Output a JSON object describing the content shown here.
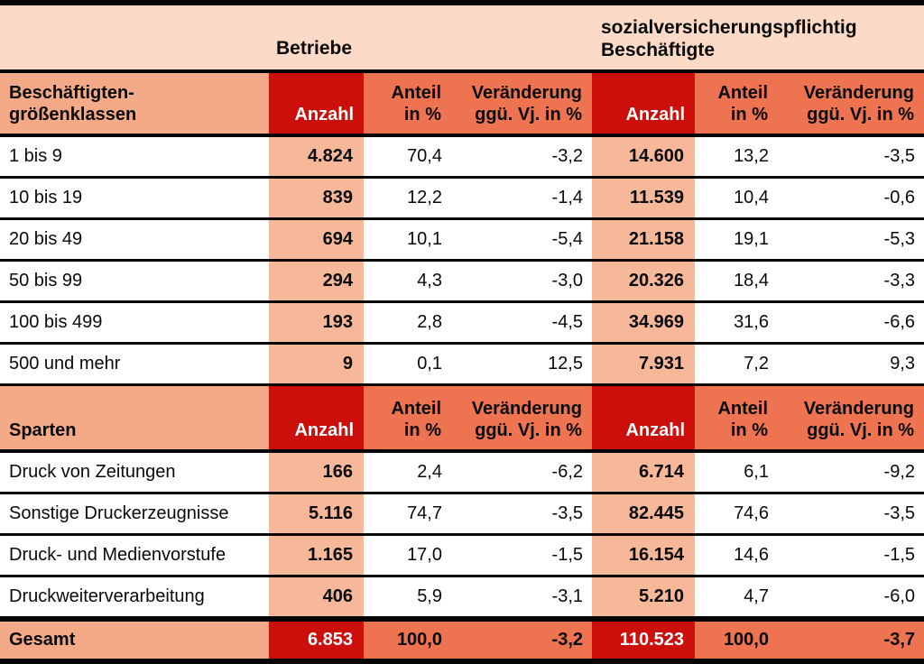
{
  "chart_data": {
    "type": "table",
    "title_groups": {
      "betriebe": "Betriebe",
      "beschaeftigte_line1": "sozialversicherungspflichtig",
      "beschaeftigte_line2": "Beschäftigte"
    },
    "header": {
      "size_label_line1": "Beschäftigten-",
      "size_label_line2": "größenklassen",
      "sparten_label": "Sparten",
      "anzahl": "Anzahl",
      "anteil_line1": "Anteil",
      "anteil_line2": "in %",
      "veraenderung_line1": "Veränderung",
      "veraenderung_line2": "ggü. Vj. in %"
    },
    "columns": [
      "Anzahl",
      "Anteil in %",
      "Veränderung ggü. Vj. in %",
      "Anzahl",
      "Anteil in %",
      "Veränderung ggü. Vj. in %"
    ],
    "size_class_rows": [
      {
        "c": [
          "1 bis 9",
          "4.824",
          "70,4",
          "-3,2",
          "14.600",
          "13,2",
          "-3,5"
        ]
      },
      {
        "c": [
          "10 bis 19",
          "839",
          "12,2",
          "-1,4",
          "11.539",
          "10,4",
          "-0,6"
        ]
      },
      {
        "c": [
          "20 bis 49",
          "694",
          "10,1",
          "-5,4",
          "21.158",
          "19,1",
          "-5,3"
        ]
      },
      {
        "c": [
          "50 bis 99",
          "294",
          "4,3",
          "-3,0",
          "20.326",
          "18,4",
          "-3,3"
        ]
      },
      {
        "c": [
          "100 bis 499",
          "193",
          "2,8",
          "-4,5",
          "34.969",
          "31,6",
          "-6,6"
        ]
      },
      {
        "c": [
          "500 und mehr",
          "9",
          "0,1",
          "12,5",
          "7.931",
          "7,2",
          "9,3"
        ]
      }
    ],
    "sparten_rows": [
      {
        "c": [
          "Druck von Zeitungen",
          "166",
          "2,4",
          "-6,2",
          "6.714",
          "6,1",
          "-9,2"
        ]
      },
      {
        "c": [
          "Sonstige Druckerzeugnisse",
          "5.116",
          "74,7",
          "-3,5",
          "82.445",
          "74,6",
          "-3,5"
        ]
      },
      {
        "c": [
          "Druck- und Medienvorstufe",
          "1.165",
          "17,0",
          "-1,5",
          "16.154",
          "14,6",
          "-1,5"
        ]
      },
      {
        "c": [
          "Druckweiterverarbeitung",
          "406",
          "5,9",
          "-3,1",
          "5.210",
          "4,7",
          "-6,0"
        ]
      }
    ],
    "total_row": {
      "c": [
        "Gesamt",
        "6.853",
        "100,0",
        "-3,2",
        "110.523",
        "100,0",
        "-3,7"
      ]
    }
  },
  "colors": {
    "red": "#cc0f0b",
    "orange": "#ee7350",
    "salmon": "#f4a987",
    "stripe": "#f7b89a",
    "peach": "#fcdac8",
    "line": "#050505"
  }
}
